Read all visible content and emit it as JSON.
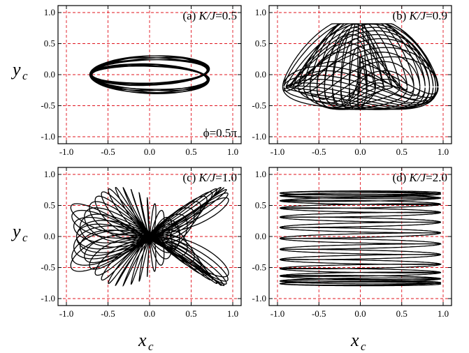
{
  "chart_data": [
    {
      "type": "line",
      "label": "(a) K/J=0.5",
      "label_prefix": "(a) ",
      "label_var": "K/J",
      "label_value": "=0.5",
      "annotation": "ϕ=0.5π",
      "xlim": [
        -1.0,
        1.0
      ],
      "ylim": [
        -1.0,
        1.0
      ],
      "grid": true,
      "trajectory": {
        "kind": "ellipse-precession",
        "ax": 0.72,
        "ay": 0.24,
        "inner_ax": 0.72,
        "inner_ay": 0.09,
        "lobes": 36,
        "wobble": 0.13
      }
    },
    {
      "type": "line",
      "label": "(b) K/J=0.9",
      "label_prefix": "(b) ",
      "label_var": "K/J",
      "label_value": "=0.9",
      "xlim": [
        -1.0,
        1.0
      ],
      "ylim": [
        -1.0,
        1.0
      ],
      "grid": true,
      "trajectory": {
        "kind": "rosette",
        "ax": 0.96,
        "ay": 0.8,
        "waist": 0.33,
        "lobes": 28
      }
    },
    {
      "type": "line",
      "label": "(c) K/J=1.0",
      "label_prefix": "(c) ",
      "label_var": "K/J",
      "label_value": "=1.0",
      "xlim": [
        -1.0,
        1.0
      ],
      "ylim": [
        -1.0,
        1.0
      ],
      "grid": true,
      "trajectory": {
        "kind": "hourglass",
        "ax": 0.96,
        "ay": 0.88,
        "lobes": 30
      }
    },
    {
      "type": "line",
      "label": "(d) K/J=2.0",
      "label_prefix": "(d) ",
      "label_var": "K/J",
      "label_value": "=2.0",
      "xlim": [
        -1.0,
        1.0
      ],
      "ylim": [
        -1.0,
        1.0
      ],
      "grid": true,
      "trajectory": {
        "kind": "bands",
        "ax": 0.97,
        "y_min": -0.78,
        "y_max": 0.72,
        "rows": 26
      }
    }
  ],
  "axes": {
    "xlabel_main": "x",
    "xlabel_sub": "c",
    "ylabel_main": "y",
    "ylabel_sub": "c",
    "x_ticks": [
      "-1.0",
      "-0.5",
      "0.0",
      "0.5",
      "1.0"
    ],
    "x_tick_values": [
      -1.0,
      -0.5,
      0.0,
      0.5,
      1.0
    ],
    "y_ticks": [
      "-1.0",
      "-0.5",
      "0.0",
      "0.5",
      "1.0"
    ],
    "y_tick_values": [
      -1.0,
      -0.5,
      0.0,
      0.5,
      1.0
    ]
  },
  "colors": {
    "trace": "#000000",
    "grid": "#e0141e",
    "frame": "#000000"
  }
}
